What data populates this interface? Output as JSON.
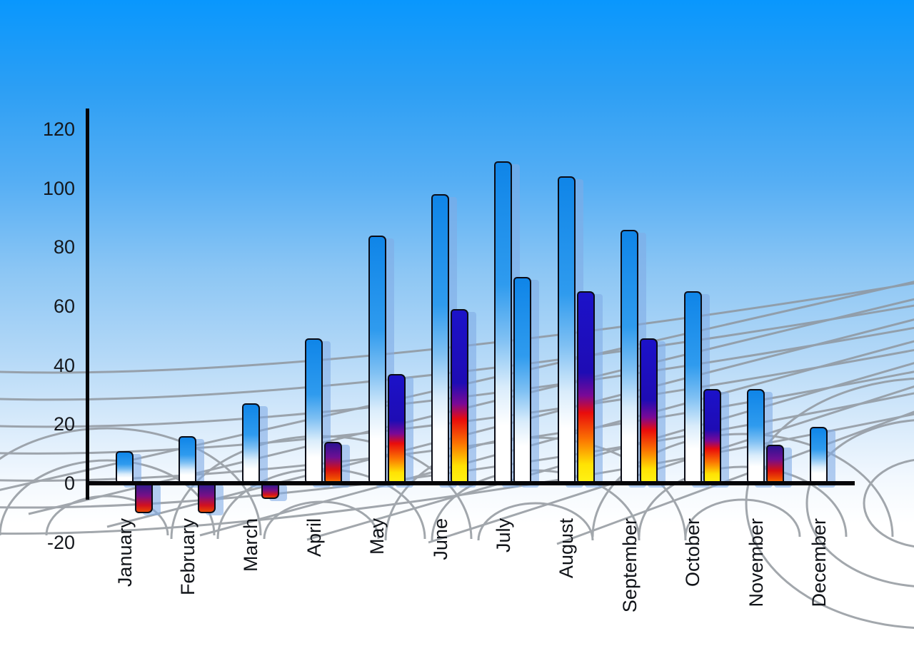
{
  "chart_data": {
    "type": "bar",
    "title": "",
    "categories": [
      "January",
      "February",
      "March",
      "April",
      "May",
      "June",
      "July",
      "August",
      "September",
      "October",
      "November",
      "December"
    ],
    "series": [
      {
        "name": "primary-blue-bars",
        "values": [
          11,
          16,
          27,
          49,
          84,
          98,
          109,
          104,
          86,
          65,
          32,
          19
        ],
        "style": "blue"
      },
      {
        "name": "secondary-gradient-bars",
        "values": [
          -10,
          -10,
          -5,
          14,
          37,
          59,
          70,
          65,
          49,
          32,
          13,
          null
        ],
        "styles": [
          "fire",
          "fire",
          "fire",
          "fire",
          "fire",
          "fire",
          "blue",
          "fire",
          "fire",
          "fire",
          "fire",
          null
        ]
      }
    ],
    "y_axis": {
      "min": -20,
      "max": 120,
      "ticks": [
        {
          "label": "120",
          "value": 120
        },
        {
          "label": "100",
          "value": 100
        },
        {
          "label": "80",
          "value": 80
        },
        {
          "label": "60",
          "value": 60
        },
        {
          "label": "40",
          "value": 40
        },
        {
          "label": "20",
          "value": 20
        },
        {
          "label": "0",
          "value": 0
        },
        {
          "label": "-20",
          "value": -20
        }
      ]
    },
    "xlabel": "",
    "ylabel": "",
    "legend": null,
    "grid": "gray perspective wireframe behind bars",
    "background": "blue sky gradient fading to white"
  },
  "theme": {
    "sky_top": "#0997fd",
    "sky_bottom": "#ffffff",
    "bar_blue_top": "#0f85e8",
    "fire_navy": "#1c12c9",
    "fire_red": "#e90c0c",
    "fire_yellow": "#fff315",
    "shadow_color": "rgba(127,170,230,0.58)",
    "axis_color": "#050508",
    "grid_color": "#8e949b",
    "label_color": "#101318"
  }
}
